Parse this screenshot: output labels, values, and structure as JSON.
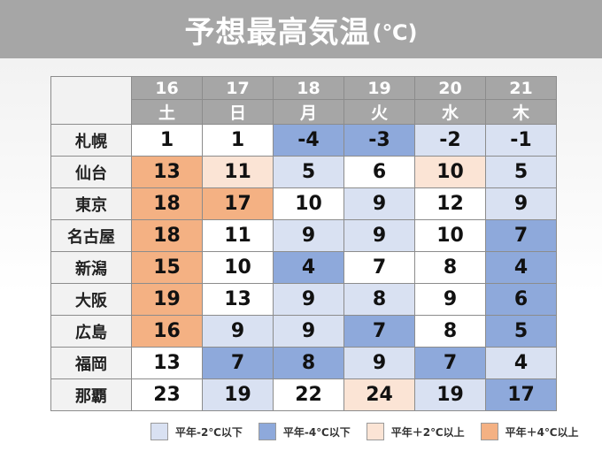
{
  "title": "予想最高気温",
  "unit": "(℃)",
  "days": [
    {
      "date": "16",
      "weekday": "土"
    },
    {
      "date": "17",
      "weekday": "日"
    },
    {
      "date": "18",
      "weekday": "月"
    },
    {
      "date": "19",
      "weekday": "火"
    },
    {
      "date": "20",
      "weekday": "水"
    },
    {
      "date": "21",
      "weekday": "木"
    }
  ],
  "rows": [
    {
      "city": "札幌",
      "values": [
        "1",
        "1",
        "-4",
        "-3",
        "-2",
        "-1"
      ],
      "levels": [
        "none",
        "none",
        "m4",
        "m4",
        "m2",
        "m2"
      ]
    },
    {
      "city": "仙台",
      "values": [
        "13",
        "11",
        "5",
        "6",
        "10",
        "5"
      ],
      "levels": [
        "p4",
        "p2",
        "m2",
        "none",
        "p2",
        "m2"
      ]
    },
    {
      "city": "東京",
      "values": [
        "18",
        "17",
        "10",
        "9",
        "12",
        "9"
      ],
      "levels": [
        "p4",
        "p4",
        "none",
        "m2",
        "none",
        "m2"
      ]
    },
    {
      "city": "名古屋",
      "values": [
        "18",
        "11",
        "9",
        "9",
        "10",
        "7"
      ],
      "levels": [
        "p4",
        "none",
        "m2",
        "m2",
        "none",
        "m4"
      ]
    },
    {
      "city": "新潟",
      "values": [
        "15",
        "10",
        "4",
        "7",
        "8",
        "4"
      ],
      "levels": [
        "p4",
        "none",
        "m4",
        "none",
        "none",
        "m4"
      ]
    },
    {
      "city": "大阪",
      "values": [
        "19",
        "13",
        "9",
        "8",
        "9",
        "6"
      ],
      "levels": [
        "p4",
        "none",
        "m2",
        "m2",
        "none",
        "m4"
      ]
    },
    {
      "city": "広島",
      "values": [
        "16",
        "9",
        "9",
        "7",
        "8",
        "5"
      ],
      "levels": [
        "p4",
        "m2",
        "m2",
        "m4",
        "none",
        "m4"
      ]
    },
    {
      "city": "福岡",
      "values": [
        "13",
        "7",
        "8",
        "9",
        "7",
        "4"
      ],
      "levels": [
        "none",
        "m4",
        "m4",
        "m2",
        "m4",
        "m2"
      ]
    },
    {
      "city": "那覇",
      "values": [
        "23",
        "19",
        "22",
        "24",
        "19",
        "17"
      ],
      "levels": [
        "none",
        "m2",
        "none",
        "p2",
        "m2",
        "m4"
      ]
    }
  ],
  "legend": [
    {
      "label": "平年-2℃以下",
      "level": "m2"
    },
    {
      "label": "平年-4℃以下",
      "level": "m4"
    },
    {
      "label": "平年＋2℃以上",
      "level": "p2"
    },
    {
      "label": "平年＋4℃以上",
      "level": "p4"
    }
  ],
  "colors": {
    "none": "#ffffff",
    "m2": "#d9e1f2",
    "m4": "#8ea9db",
    "p2": "#fbe4d5",
    "p4": "#f4b183",
    "header_bg": "#a6a6a6"
  }
}
